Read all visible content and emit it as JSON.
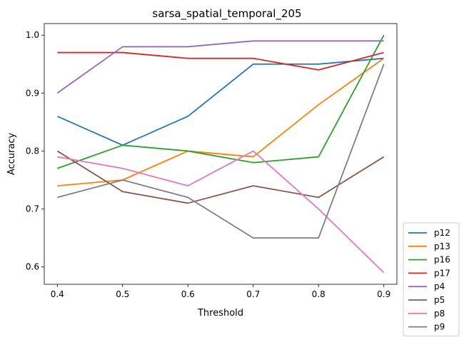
{
  "chart_data": {
    "type": "line",
    "title": "sarsa_spatial_temporal_205",
    "xlabel": "Threshold",
    "ylabel": "Accuracy",
    "x": [
      0.4,
      0.5,
      0.6,
      0.7,
      0.8,
      0.9
    ],
    "x_ticks": [
      "0.4",
      "0.5",
      "0.6",
      "0.7",
      "0.8",
      "0.9"
    ],
    "y_ticks": [
      "0.6",
      "0.7",
      "0.8",
      "0.9",
      "1.0"
    ],
    "y_tick_values": [
      0.6,
      0.7,
      0.8,
      0.9,
      1.0
    ],
    "xlim": [
      0.38,
      0.92
    ],
    "ylim": [
      0.57,
      1.02
    ],
    "grid": false,
    "legend_position": "outside-bottom-right",
    "series": [
      {
        "name": "p12",
        "color": "#1f77b4",
        "values": [
          0.86,
          0.81,
          0.86,
          0.95,
          0.95,
          0.96
        ]
      },
      {
        "name": "p13",
        "color": "#ff7f0e",
        "values": [
          0.74,
          0.75,
          0.8,
          0.79,
          0.88,
          0.96
        ]
      },
      {
        "name": "p16",
        "color": "#2ca02c",
        "values": [
          0.77,
          0.81,
          0.8,
          0.78,
          0.79,
          1.0
        ]
      },
      {
        "name": "p17",
        "color": "#d62728",
        "values": [
          0.97,
          0.97,
          0.96,
          0.96,
          0.94,
          0.97
        ]
      },
      {
        "name": "p4",
        "color": "#9467bd",
        "values": [
          0.9,
          0.98,
          0.98,
          0.99,
          0.99,
          0.99
        ]
      },
      {
        "name": "p5",
        "color": "#8c564b",
        "values": [
          0.8,
          0.73,
          0.71,
          0.74,
          0.72,
          0.79
        ]
      },
      {
        "name": "p8",
        "color": "#e377c2",
        "values": [
          0.79,
          0.77,
          0.74,
          0.8,
          0.7,
          0.59
        ]
      },
      {
        "name": "p9",
        "color": "#7f7f7f",
        "values": [
          0.72,
          0.75,
          0.72,
          0.65,
          0.65,
          0.95
        ]
      }
    ]
  }
}
